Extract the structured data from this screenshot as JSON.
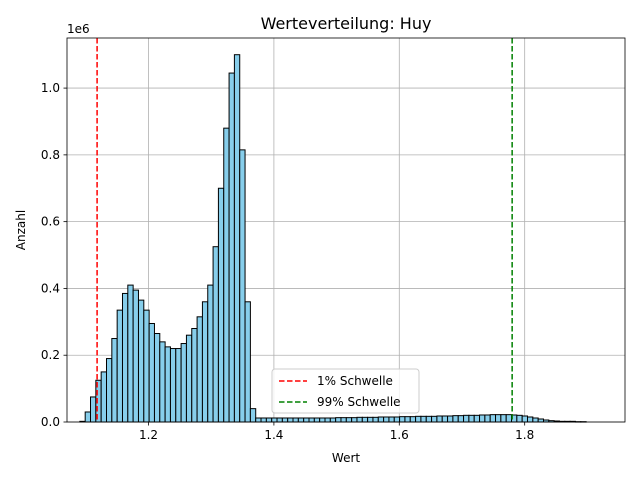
{
  "chart_data": {
    "type": "bar",
    "subtype": "histogram",
    "title": "Werteverteilung: Huy",
    "xlabel": "Wert",
    "ylabel": "Anzahl",
    "y_scale_label": "1e6",
    "xlim": [
      1.07,
      1.96
    ],
    "ylim": [
      0,
      1.15
    ],
    "xticks": [
      1.2,
      1.4,
      1.6,
      1.8
    ],
    "xtick_labels": [
      "1.2",
      "1.4",
      "1.6",
      "1.8"
    ],
    "yticks": [
      0.0,
      0.2,
      0.4,
      0.6,
      0.8,
      1.0
    ],
    "ytick_labels": [
      "0.0",
      "0.2",
      "0.4",
      "0.6",
      "0.8",
      "1.0"
    ],
    "grid": true,
    "legend_position": "lower-center",
    "bin_start": 1.0905,
    "bin_width": 0.0085,
    "bar_color": "#87ceeb",
    "bar_edge_color": "#000000",
    "values": [
      0.002,
      0.03,
      0.075,
      0.125,
      0.15,
      0.19,
      0.25,
      0.335,
      0.385,
      0.41,
      0.395,
      0.365,
      0.335,
      0.295,
      0.265,
      0.24,
      0.225,
      0.22,
      0.22,
      0.235,
      0.26,
      0.28,
      0.315,
      0.36,
      0.41,
      0.525,
      0.7,
      0.88,
      1.045,
      1.1,
      0.815,
      0.36,
      0.04,
      0.012,
      0.012,
      0.012,
      0.012,
      0.012,
      0.012,
      0.012,
      0.012,
      0.012,
      0.012,
      0.012,
      0.012,
      0.012,
      0.012,
      0.012,
      0.013,
      0.013,
      0.013,
      0.013,
      0.014,
      0.014,
      0.014,
      0.014,
      0.015,
      0.015,
      0.015,
      0.015,
      0.016,
      0.016,
      0.016,
      0.017,
      0.017,
      0.017,
      0.017,
      0.018,
      0.018,
      0.018,
      0.019,
      0.019,
      0.02,
      0.02,
      0.02,
      0.021,
      0.021,
      0.022,
      0.022,
      0.022,
      0.022,
      0.021,
      0.02,
      0.018,
      0.015,
      0.012,
      0.009,
      0.006,
      0.004,
      0.003,
      0.002,
      0.002,
      0.002,
      0.001,
      0.001
    ],
    "threshold_lines": [
      {
        "name": "1% Schwelle",
        "x": 1.118,
        "color": "#ff0000",
        "style": "dashed"
      },
      {
        "name": "99% Schwelle",
        "x": 1.78,
        "color": "#008000",
        "style": "dashed"
      }
    ]
  }
}
